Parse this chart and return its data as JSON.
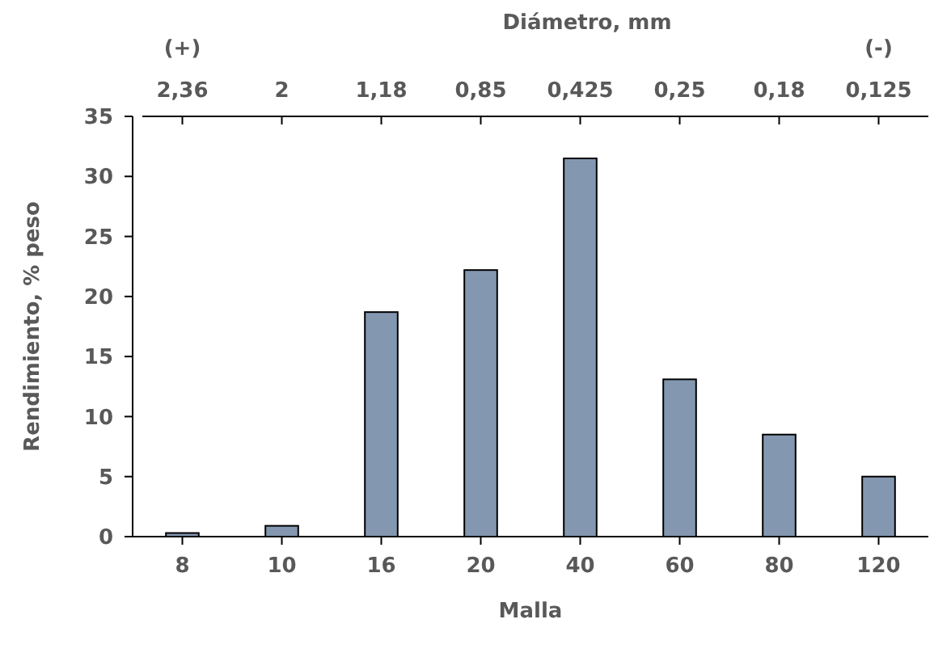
{
  "chart_data": {
    "type": "bar",
    "categories": [
      "8",
      "10",
      "16",
      "20",
      "40",
      "60",
      "80",
      "120"
    ],
    "values": [
      0.3,
      0.9,
      18.7,
      22.2,
      31.5,
      13.1,
      8.5,
      5.0
    ],
    "color": "#8497b0",
    "xlabel": "Malla",
    "ylabel": "Rendimiento, % peso",
    "x2label": "Diámetro, mm",
    "ylim": [
      0,
      35
    ],
    "yticks": [
      0,
      5,
      10,
      15,
      20,
      25,
      30,
      35
    ],
    "annotations": [
      "2,36",
      "2",
      "1,18",
      "0,85",
      "0,425",
      "0,25",
      "0,18",
      "0,125",
      "(+)",
      "(-)"
    ],
    "grid": false
  }
}
